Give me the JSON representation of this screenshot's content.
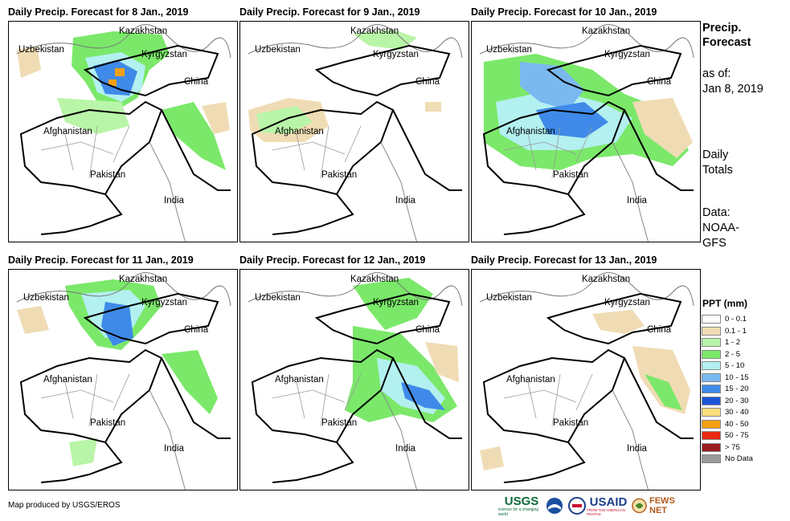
{
  "panels": [
    {
      "title": "Daily Precip. Forecast for 8 Jan., 2019"
    },
    {
      "title": "Daily Precip. Forecast for 9 Jan., 2019"
    },
    {
      "title": "Daily Precip. Forecast for 10 Jan., 2019"
    },
    {
      "title": "Daily Precip. Forecast for 11 Jan., 2019"
    },
    {
      "title": "Daily Precip. Forecast for 12 Jan., 2019"
    },
    {
      "title": "Daily Precip. Forecast for 13 Jan., 2019"
    }
  ],
  "map_labels": {
    "kazakhstan": "Kazakhstan",
    "uzbekistan": "Uzbekistan",
    "kyrgyzstan": "Kyrgyzstan",
    "china": "China",
    "afghanistan": "Afghanistan",
    "pakistan": "Pakistan",
    "india": "India"
  },
  "side": {
    "title_line1": "Precip.",
    "title_line2": "Forecast",
    "asof_line1": "as of:",
    "asof_line2": "Jan 8, 2019",
    "totals_line1": "Daily",
    "totals_line2": "Totals",
    "data_line1": "Data:",
    "data_line2": "NOAA-",
    "data_line3": "GFS"
  },
  "legend": {
    "title": "PPT (mm)",
    "items": [
      {
        "label": "0 - 0.1",
        "color": "#ffffff"
      },
      {
        "label": "0.1 - 1",
        "color": "#f0dcb4"
      },
      {
        "label": "1 - 2",
        "color": "#b9f5a8"
      },
      {
        "label": "2 - 5",
        "color": "#7be86a"
      },
      {
        "label": "5 - 10",
        "color": "#b3f0f0"
      },
      {
        "label": "10 - 15",
        "color": "#7ab9f0"
      },
      {
        "label": "15 - 20",
        "color": "#3f8ae8"
      },
      {
        "label": "20 - 30",
        "color": "#1c54d6"
      },
      {
        "label": "30 - 40",
        "color": "#fde07a"
      },
      {
        "label": "40 - 50",
        "color": "#f5a012"
      },
      {
        "label": "50 - 75",
        "color": "#e82a12"
      },
      {
        "label": "> 75",
        "color": "#9a1e1e"
      },
      {
        "label": "No Data",
        "color": "#9a9a9a"
      }
    ]
  },
  "footer": "Map produced by USGS/EROS",
  "logos": {
    "usgs": "USGS",
    "usgs_tag": "science for a changing world",
    "usaid": "USAID",
    "usaid_tag": "FROM THE AMERICAN PEOPLE",
    "fewsnet": "FEWS NET"
  }
}
